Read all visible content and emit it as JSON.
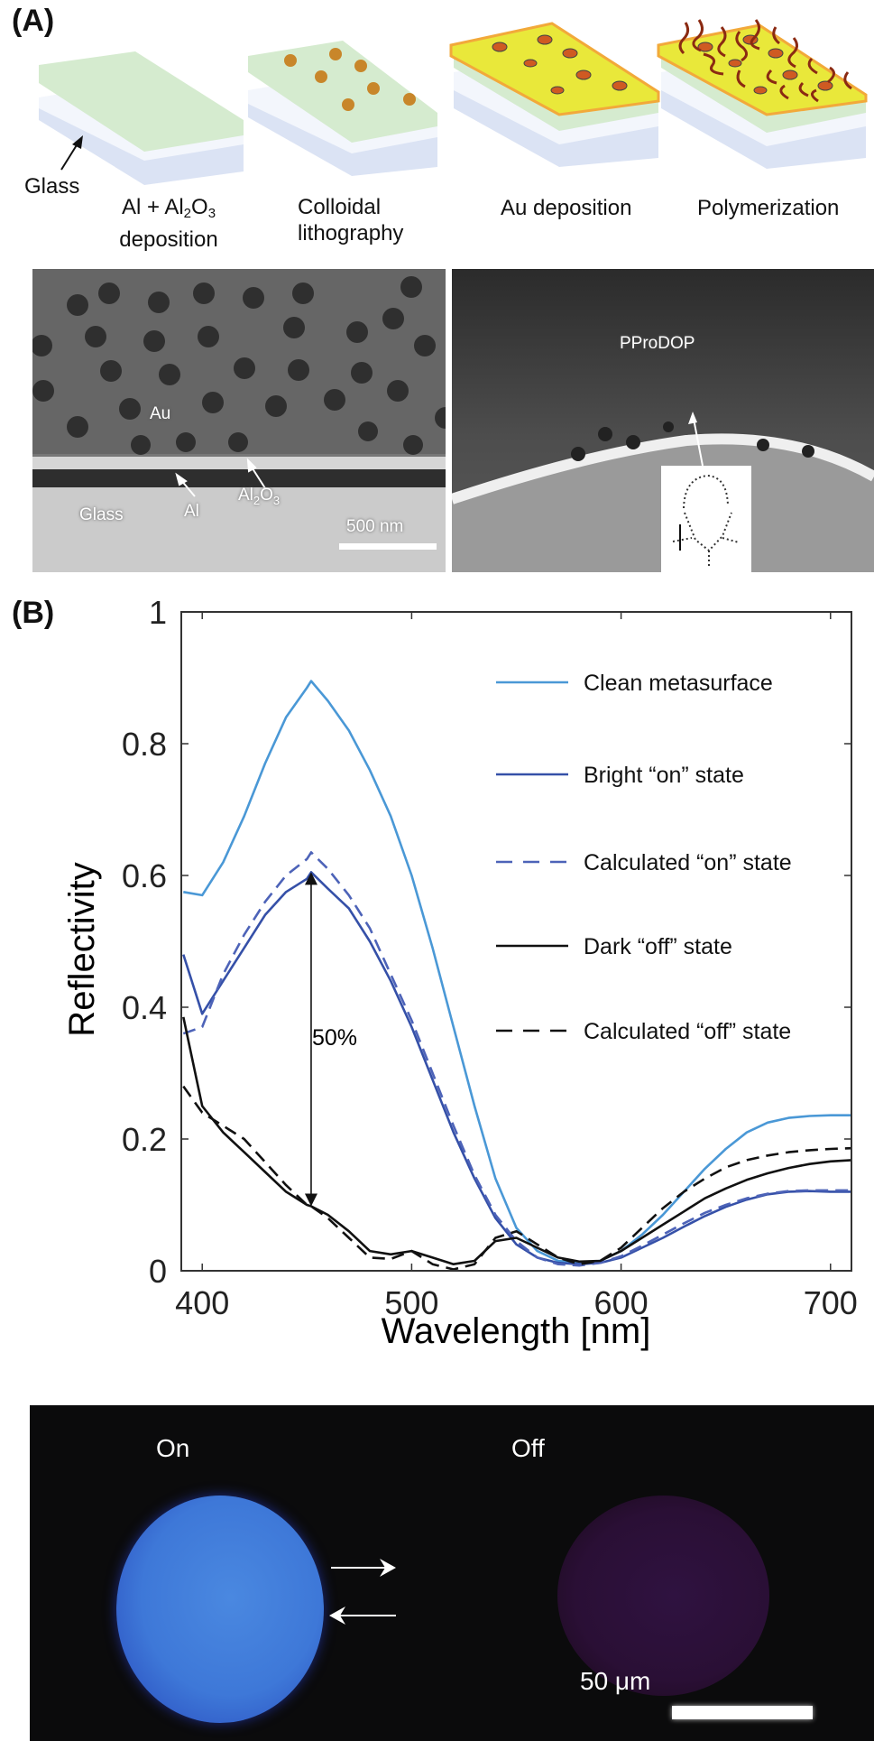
{
  "panelA": {
    "label": "(A)",
    "glass_label": "Glass",
    "steps": [
      {
        "line1": "Al + Al",
        "sub1": "2",
        "mid": "O",
        "sub2": "3",
        "line2": "deposition"
      },
      {
        "line1": "Colloidal",
        "line2": "lithography"
      },
      {
        "line1": "Au deposition",
        "line2": ""
      },
      {
        "line1": "Polymerization",
        "line2": ""
      }
    ],
    "sem_left": {
      "au": "Au",
      "glass": "Glass",
      "al": "Al",
      "al2o3_a": "Al",
      "al2o3_sub1": "2",
      "al2o3_b": "O",
      "al2o3_sub2": "3",
      "scale_bar": "500 nm"
    },
    "sem_right": {
      "polymer": "PProDOP"
    },
    "colors": {
      "substrate": "#d7e1f3",
      "al_layer": "#d5ebcf",
      "au_layer": "#e9e83a",
      "particle": "#c8862a",
      "polymer": "#8b2a12"
    }
  },
  "panelB": {
    "label": "(B)",
    "annotation": "50%"
  },
  "chart_data": {
    "type": "line",
    "title": "",
    "xlabel": "Wavelength [nm]",
    "ylabel": "Reflectivity",
    "xlim": [
      390,
      710
    ],
    "ylim": [
      0,
      1
    ],
    "xticks": [
      "400",
      "500",
      "600",
      "700"
    ],
    "yticks": [
      "0",
      "0.2",
      "0.4",
      "0.6",
      "0.8",
      "1"
    ],
    "grid": false,
    "legend_position": "top-right",
    "x": [
      391,
      400,
      410,
      420,
      430,
      440,
      450,
      452,
      460,
      470,
      480,
      490,
      500,
      510,
      520,
      530,
      540,
      550,
      560,
      570,
      580,
      590,
      600,
      610,
      620,
      630,
      640,
      650,
      660,
      670,
      680,
      690,
      700,
      710
    ],
    "series": [
      {
        "name": "Clean metasurface",
        "color": "#4a98d6",
        "dash": "solid",
        "values": [
          0.575,
          0.57,
          0.62,
          0.69,
          0.77,
          0.84,
          0.885,
          0.895,
          0.865,
          0.82,
          0.76,
          0.69,
          0.6,
          0.49,
          0.37,
          0.25,
          0.14,
          0.065,
          0.03,
          0.015,
          0.012,
          0.015,
          0.03,
          0.055,
          0.085,
          0.12,
          0.155,
          0.185,
          0.21,
          0.225,
          0.232,
          0.235,
          0.236,
          0.236
        ]
      },
      {
        "name": "Bright “on” state",
        "color": "#3550a8",
        "dash": "solid",
        "values": [
          0.48,
          0.39,
          0.44,
          0.49,
          0.54,
          0.575,
          0.595,
          0.605,
          0.58,
          0.55,
          0.5,
          0.44,
          0.37,
          0.29,
          0.21,
          0.14,
          0.08,
          0.04,
          0.02,
          0.012,
          0.01,
          0.012,
          0.02,
          0.035,
          0.05,
          0.067,
          0.083,
          0.097,
          0.108,
          0.116,
          0.12,
          0.121,
          0.12,
          0.12
        ]
      },
      {
        "name": "Calculated “on” state",
        "color": "#4d63b8",
        "dash": "dashed",
        "values": [
          0.36,
          0.37,
          0.45,
          0.51,
          0.56,
          0.6,
          0.625,
          0.635,
          0.61,
          0.57,
          0.52,
          0.45,
          0.38,
          0.3,
          0.22,
          0.145,
          0.085,
          0.045,
          0.02,
          0.01,
          0.008,
          0.012,
          0.022,
          0.038,
          0.055,
          0.072,
          0.088,
          0.1,
          0.11,
          0.117,
          0.121,
          0.122,
          0.122,
          0.122
        ]
      },
      {
        "name": "Dark “off” state",
        "color": "#111111",
        "dash": "solid",
        "values": [
          0.385,
          0.25,
          0.21,
          0.18,
          0.15,
          0.12,
          0.1,
          0.098,
          0.085,
          0.06,
          0.03,
          0.025,
          0.03,
          0.02,
          0.01,
          0.015,
          0.045,
          0.05,
          0.035,
          0.02,
          0.014,
          0.015,
          0.03,
          0.05,
          0.07,
          0.09,
          0.11,
          0.125,
          0.138,
          0.148,
          0.156,
          0.162,
          0.166,
          0.168
        ]
      },
      {
        "name": "Calculated “off” state",
        "color": "#111111",
        "dash": "dashed",
        "values": [
          0.28,
          0.24,
          0.22,
          0.2,
          0.165,
          0.13,
          0.1,
          0.098,
          0.08,
          0.05,
          0.02,
          0.018,
          0.03,
          0.01,
          0.002,
          0.01,
          0.05,
          0.06,
          0.04,
          0.02,
          0.01,
          0.015,
          0.035,
          0.065,
          0.095,
          0.12,
          0.14,
          0.157,
          0.168,
          0.175,
          0.18,
          0.183,
          0.185,
          0.186
        ]
      }
    ],
    "annotations": [
      {
        "text": "50%",
        "type": "double-arrow",
        "x": 452,
        "y_from": 0.098,
        "y_to": 0.605
      }
    ]
  },
  "panelC": {
    "on_label": "On",
    "off_label": "Off",
    "scale_bar": "50 μm",
    "colors": {
      "on_disk": "#3e78d8",
      "off_disk": "#2a0f35"
    }
  }
}
